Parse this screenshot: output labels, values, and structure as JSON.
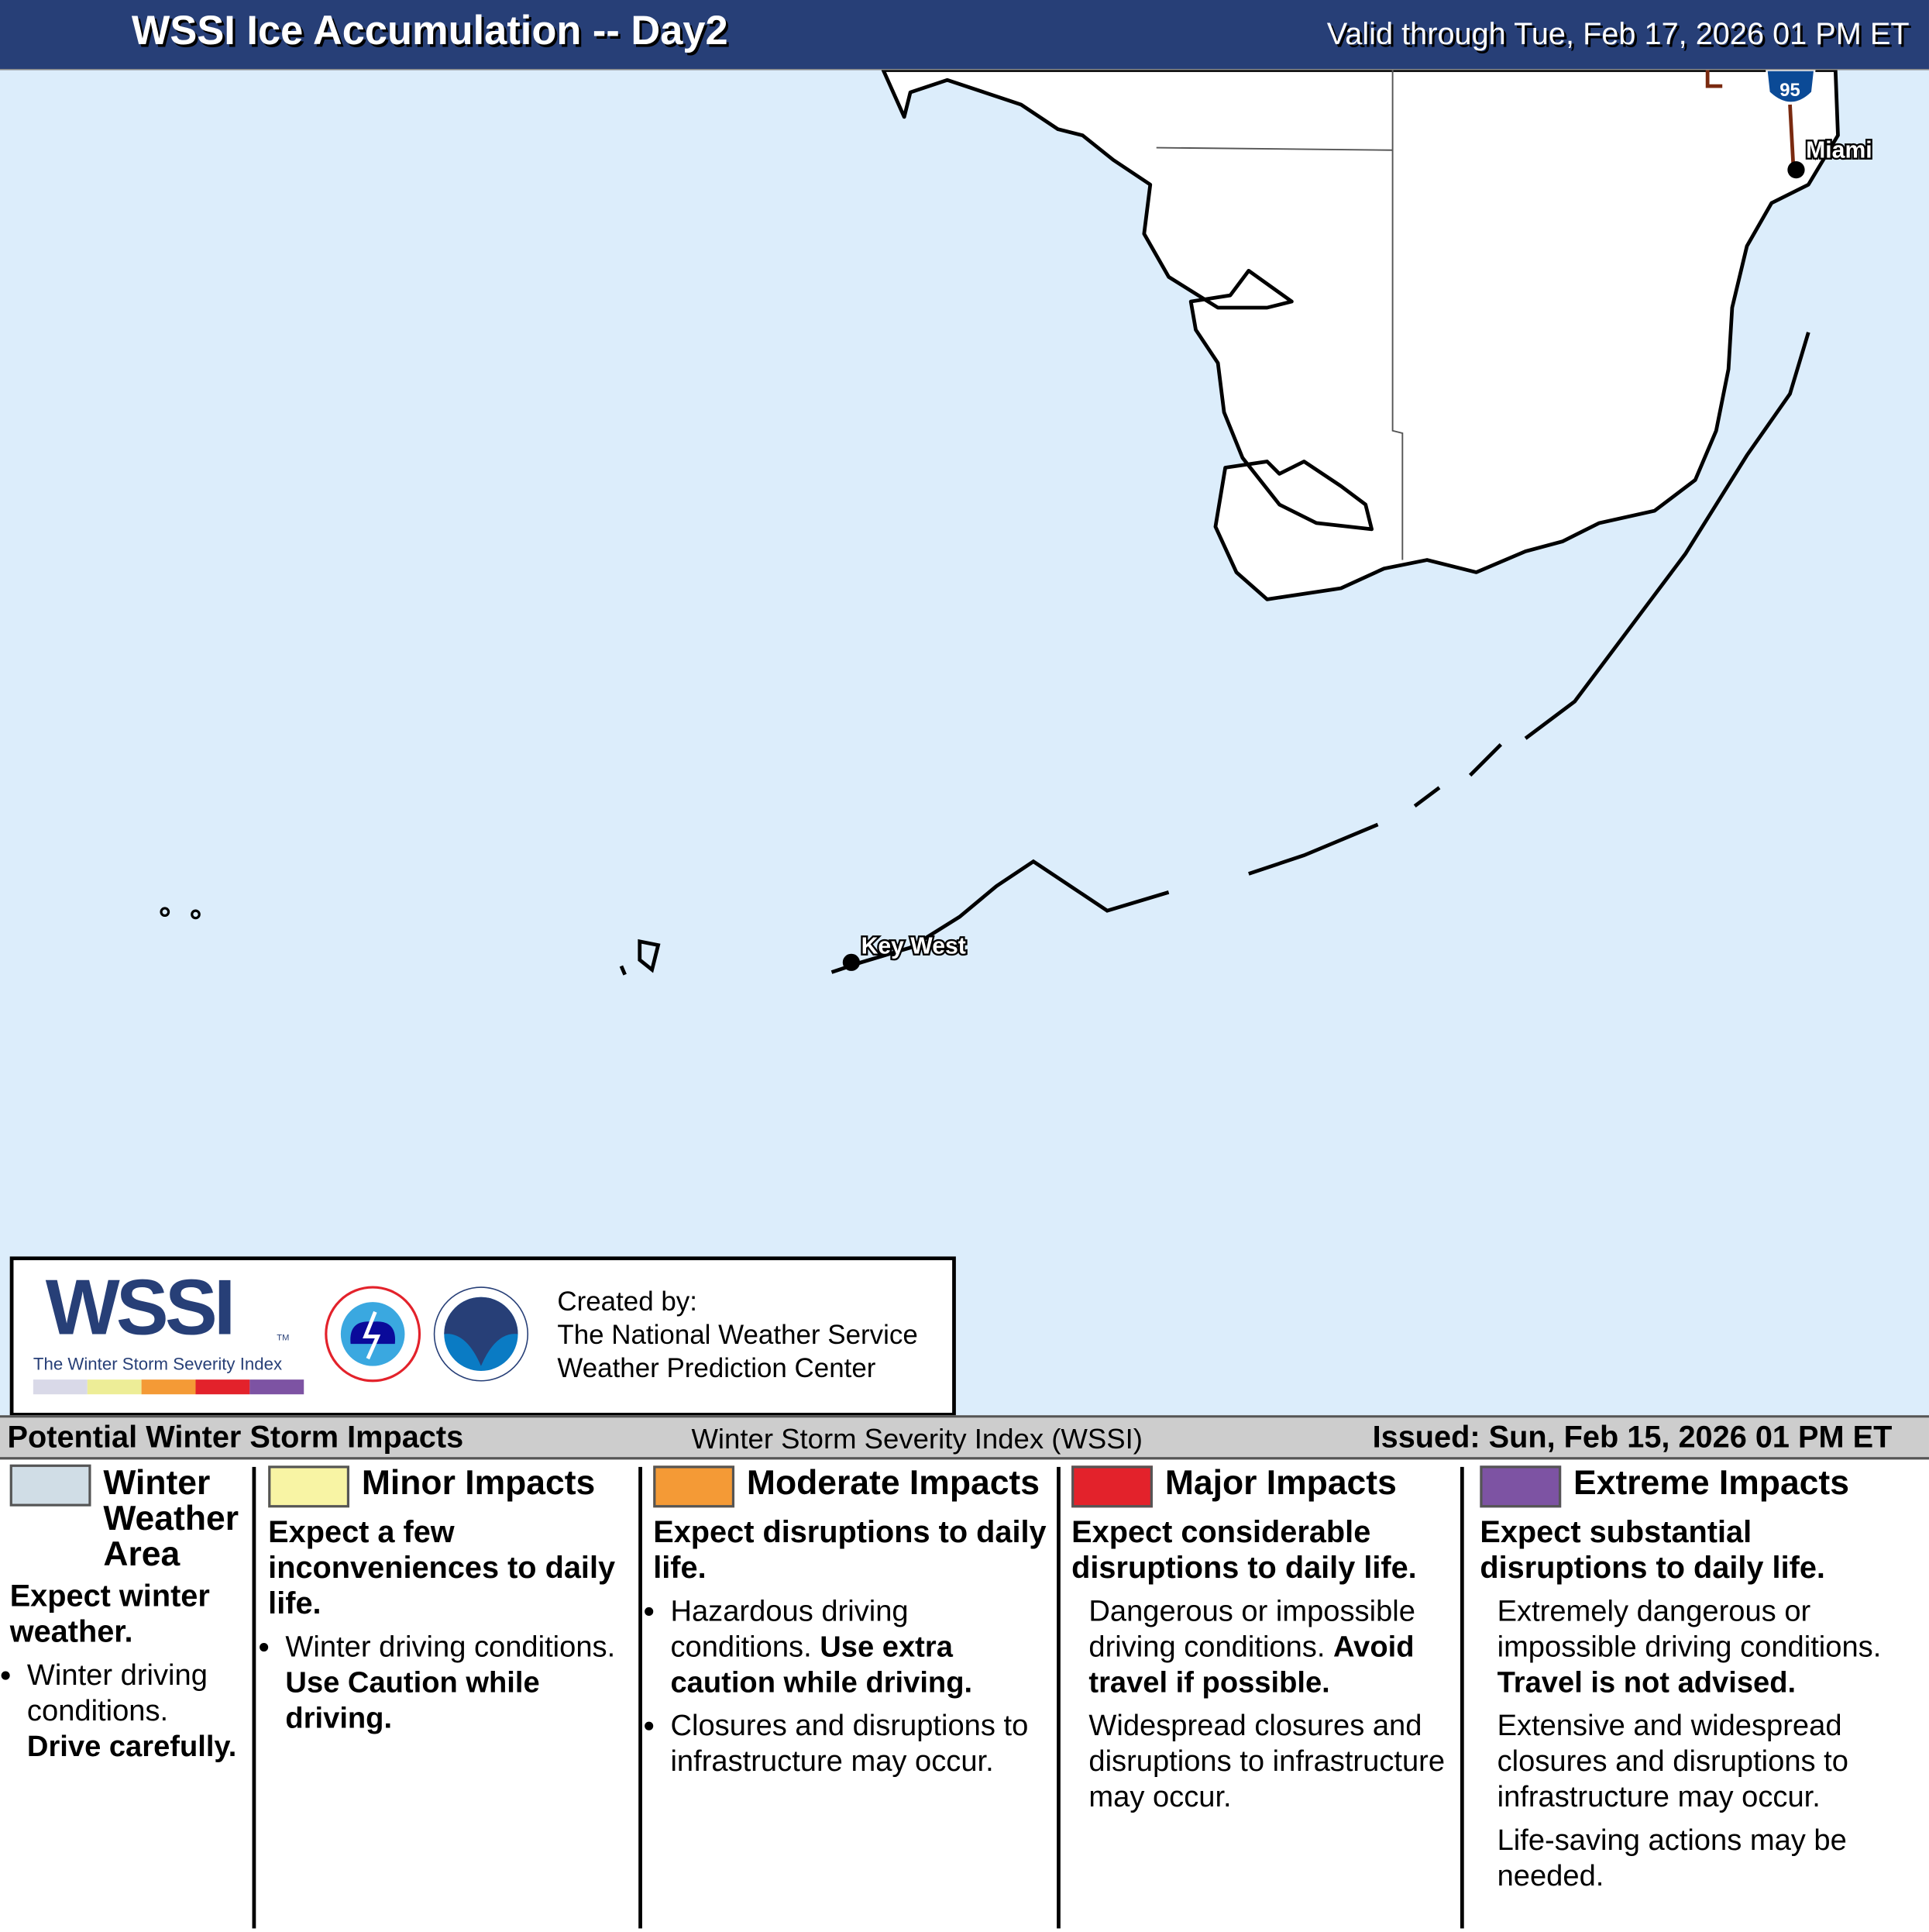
{
  "header": {
    "title": "WSSI Ice Accumulation -- Day2",
    "valid": "Valid through Tue, Feb 17, 2026 01 PM ET"
  },
  "map": {
    "cities": [
      "Miami",
      "Key West"
    ],
    "highway": "95",
    "colors": {
      "water": "#dcedfb",
      "land": "#ffffff",
      "header": "#273f77"
    }
  },
  "logo": {
    "wordmark": "WSSI",
    "tm": "TM",
    "subtitle": "The Winter Storm Severity Index",
    "created_by": "Created by:",
    "org1": "The National Weather Service",
    "org2": "Weather Prediction Center",
    "scale_colors": [
      "#d9d9e8",
      "#eded97",
      "#f49a36",
      "#e3222b",
      "#7d53a3"
    ]
  },
  "legend": {
    "title": "Potential Winter Storm Impacts",
    "center": "Winter Storm Severity Index (WSSI)",
    "issued": "Issued: Sun, Feb 15, 2026 01 PM ET",
    "categories": [
      {
        "name": "Winter Weather Area",
        "color": "#d0dde6",
        "lead": "Expect winter weather.",
        "b1": "Winter driving conditions.",
        "b1b": "Drive carefully."
      },
      {
        "name": "Minor Impacts",
        "color": "#f8f4a4",
        "lead": "Expect a few inconveniences to daily life.",
        "b1": "Winter driving conditions.",
        "b1b": "Use Caution while driving."
      },
      {
        "name": "Moderate Impacts",
        "color": "#f49a36",
        "lead": "Expect disruptions to daily life.",
        "b1": "Hazardous driving conditions.",
        "b1b": "Use extra caution while driving.",
        "b2": "Closures and disruptions to infrastructure may occur."
      },
      {
        "name": "Major Impacts",
        "color": "#e3222b",
        "lead": "Expect considerable disruptions to daily life.",
        "b1": "Dangerous or impossible driving conditions.",
        "b1b": "Avoid travel if possible.",
        "b2": "Widespread closures and disruptions to infrastructure may occur."
      },
      {
        "name": "Extreme Impacts",
        "color": "#7d53a3",
        "lead": "Expect substantial disruptions to daily life.",
        "b1": "Extremely dangerous or impossible driving conditions.",
        "b1b": "Travel is not advised.",
        "b2": "Extensive and widespread closures and disruptions to infrastructure may occur.",
        "b3": "Life-saving actions may be needed."
      }
    ]
  }
}
